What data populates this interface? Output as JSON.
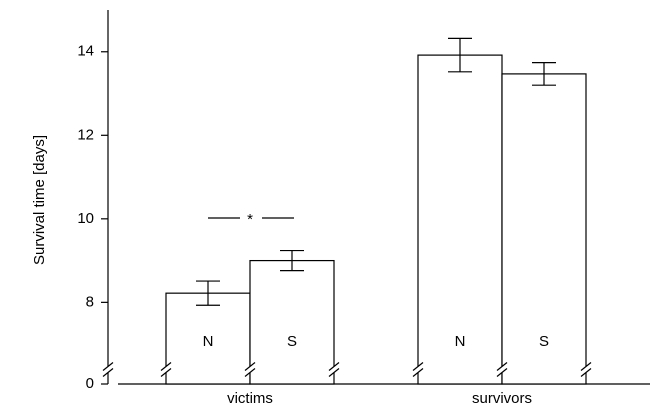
{
  "chart_data": {
    "type": "bar",
    "y_label": "Survival time [days]",
    "categories": [
      "victims",
      "survivors"
    ],
    "series": [
      {
        "name": "N",
        "color": "#ffffff",
        "values": [
          8.22,
          13.92
        ],
        "errors": [
          0.29,
          0.4
        ]
      },
      {
        "name": "S",
        "color": "#ffffff",
        "values": [
          9.0,
          13.47
        ],
        "errors": [
          0.24,
          0.27
        ]
      }
    ],
    "ylim": [
      0,
      15
    ],
    "y_break": [
      0.5,
      6.5
    ],
    "yticks": [
      0,
      8,
      10,
      12,
      14
    ],
    "annotations": [
      {
        "text": "*",
        "category": 0
      }
    ]
  }
}
